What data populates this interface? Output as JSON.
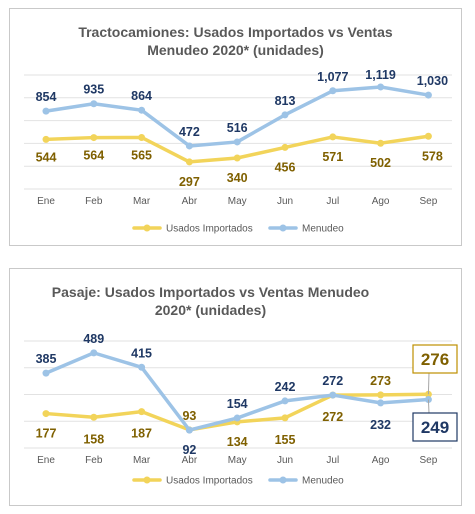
{
  "chart_data": [
    {
      "type": "line",
      "title_lines": [
        "Tractocamiones: Usados Importados  vs Ventas",
        "Menudeo 2020* (unidades)"
      ],
      "categories": [
        "Ene",
        "Feb",
        "Mar",
        "Abr",
        "May",
        "Jun",
        "Jul",
        "Ago",
        "Sep"
      ],
      "series": [
        {
          "name": "Usados Importados",
          "color": "#f2d45a",
          "label_color": "#7f6000",
          "values": [
            544,
            564,
            565,
            297,
            340,
            456,
            571,
            502,
            578
          ],
          "labels": [
            "544",
            "564",
            "565",
            "297",
            "340",
            "456",
            "571",
            "502",
            "578"
          ]
        },
        {
          "name": "Menudeo",
          "color": "#9dc3e6",
          "label_color": "#1f3864",
          "values": [
            854,
            935,
            864,
            472,
            516,
            813,
            1077,
            1119,
            1030
          ],
          "labels": [
            "854",
            "935",
            "864",
            "472",
            "516",
            "813",
            "1,077",
            "1,119",
            "1,030"
          ]
        }
      ],
      "ylim": [
        0,
        1250
      ],
      "grid": true,
      "legend": "bottom"
    },
    {
      "type": "line",
      "title_lines": [
        "Pasaje: Usados Importados  vs Ventas Menudeo",
        "2020* (unidades)"
      ],
      "categories": [
        "Ene",
        "Feb",
        "Mar",
        "Abr",
        "May",
        "Jun",
        "Jul",
        "Ago",
        "Sep"
      ],
      "series": [
        {
          "name": "Usados Importados",
          "color": "#f2d45a",
          "label_color": "#7f6000",
          "values": [
            177,
            158,
            187,
            93,
            134,
            155,
            272,
            273,
            276
          ],
          "labels": [
            "177",
            "158",
            "187",
            "93",
            "134",
            "155",
            "272",
            "273",
            "276"
          ]
        },
        {
          "name": "Menudeo",
          "color": "#9dc3e6",
          "label_color": "#1f3864",
          "values": [
            385,
            489,
            415,
            92,
            154,
            242,
            272,
            232,
            249
          ],
          "labels": [
            "385",
            "489",
            "415",
            "92",
            "154",
            "242",
            "272",
            "232",
            "249"
          ]
        }
      ],
      "ylim": [
        0,
        550
      ],
      "grid": true,
      "legend": "bottom"
    }
  ]
}
